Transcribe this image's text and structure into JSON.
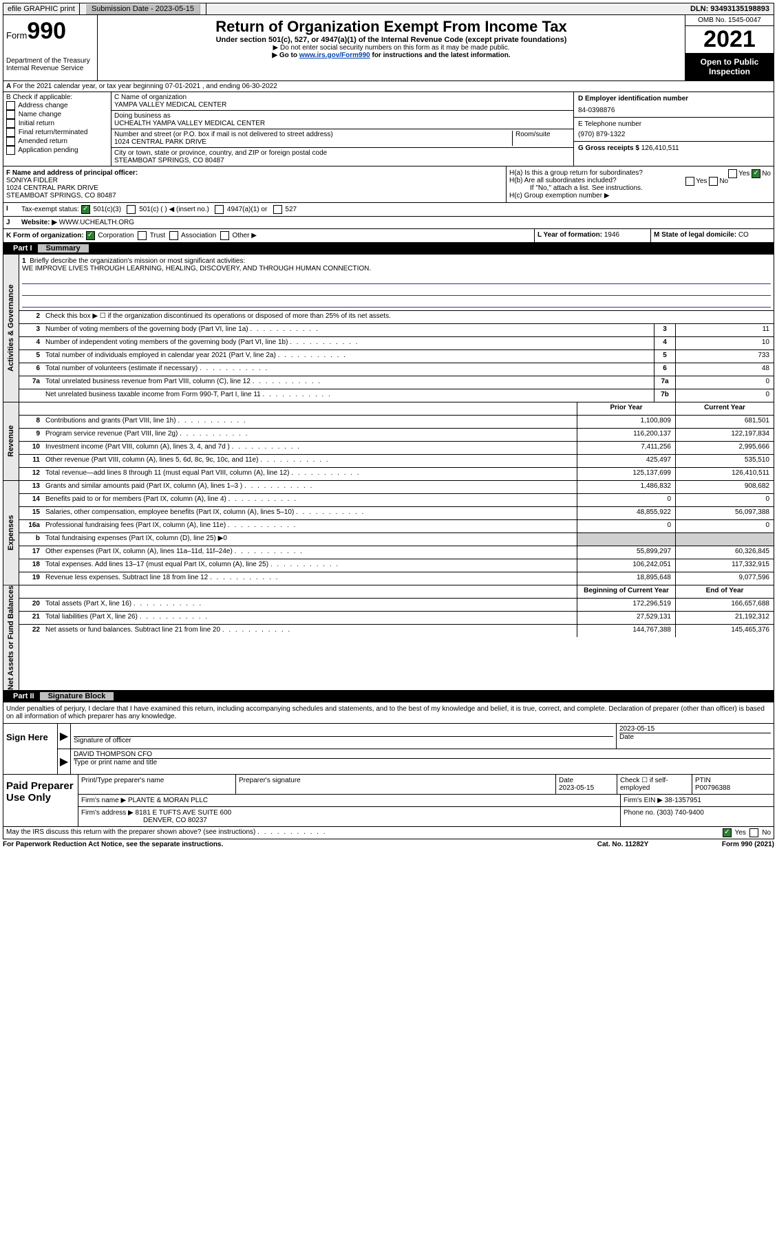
{
  "topbar": {
    "efile": "efile GRAPHIC print",
    "subdate_label": "Submission Date - ",
    "subdate": "2023-05-15",
    "dln_label": "DLN: ",
    "dln": "93493135198893"
  },
  "header": {
    "form_label": "Form",
    "form_num": "990",
    "dept": "Department of the Treasury\nInternal Revenue Service",
    "title": "Return of Organization Exempt From Income Tax",
    "sub": "Under section 501(c), 527, or 4947(a)(1) of the Internal Revenue Code (except private foundations)",
    "note1": "▶ Do not enter social security numbers on this form as it may be made public.",
    "note2_a": "▶ Go to ",
    "note2_link": "www.irs.gov/Form990",
    "note2_b": " for instructions and the latest information.",
    "omb": "OMB No. 1545-0047",
    "year": "2021",
    "open": "Open to Public Inspection"
  },
  "row_a": "For the 2021 calendar year, or tax year beginning 07-01-2021    , and ending 06-30-2022",
  "box_b": {
    "title": "B Check if applicable:",
    "items": [
      "Address change",
      "Name change",
      "Initial return",
      "Final return/terminated",
      "Amended return",
      "Application pending"
    ]
  },
  "box_c": {
    "name_label": "C Name of organization",
    "name": "YAMPA VALLEY MEDICAL CENTER",
    "dba_label": "Doing business as",
    "dba": "UCHEALTH YAMPA VALLEY MEDICAL CENTER",
    "street_label": "Number and street (or P.O. box if mail is not delivered to street address)",
    "room_label": "Room/suite",
    "street": "1024 CENTRAL PARK DRIVE",
    "city_label": "City or town, state or province, country, and ZIP or foreign postal code",
    "city": "STEAMBOAT SPRINGS, CO  80487"
  },
  "box_d": {
    "label": "D Employer identification number",
    "ein": "84-0398876"
  },
  "box_e": {
    "label": "E Telephone number",
    "phone": "(970) 879-1322"
  },
  "box_g": {
    "label": "G Gross receipts $ ",
    "val": "126,410,511"
  },
  "box_f": {
    "label": "F Name and address of principal officer:",
    "name": "SONIYA FIDLER",
    "street": "1024 CENTRAL PARK DRIVE",
    "city": "STEAMBOAT SPRINGS, CO  80487"
  },
  "box_h": {
    "ha": "H(a)  Is this a group return for subordinates?",
    "hb": "H(b)  Are all subordinates included?",
    "hb_note": "If \"No,\" attach a list. See instructions.",
    "hc": "H(c)  Group exemption number ▶"
  },
  "row_i": {
    "label": "Tax-exempt status:",
    "opts": [
      "501(c)(3)",
      "501(c) (  ) ◀ (insert no.)",
      "4947(a)(1) or",
      "527"
    ]
  },
  "row_j": {
    "label": "Website: ▶ ",
    "val": "WWW.UCHEALTH.ORG"
  },
  "row_k": {
    "label": "K Form of organization:",
    "opts": [
      "Corporation",
      "Trust",
      "Association",
      "Other ▶"
    ]
  },
  "row_l": {
    "label": "L Year of formation: ",
    "val": "1946"
  },
  "row_m": {
    "label": "M State of legal domicile: ",
    "val": "CO"
  },
  "part1": {
    "num": "Part I",
    "title": "Summary"
  },
  "summary": {
    "q1": "Briefly describe the organization's mission or most significant activities:",
    "mission": "WE IMPROVE LIVES THROUGH LEARNING, HEALING, DISCOVERY, AND THROUGH HUMAN CONNECTION.",
    "q2": "Check this box ▶ ☐  if the organization discontinued its operations or disposed of more than 25% of its net assets."
  },
  "gov_rows": [
    {
      "n": "3",
      "d": "Number of voting members of the governing body (Part VI, line 1a)",
      "b": "3",
      "v": "11"
    },
    {
      "n": "4",
      "d": "Number of independent voting members of the governing body (Part VI, line 1b)",
      "b": "4",
      "v": "10"
    },
    {
      "n": "5",
      "d": "Total number of individuals employed in calendar year 2021 (Part V, line 2a)",
      "b": "5",
      "v": "733"
    },
    {
      "n": "6",
      "d": "Total number of volunteers (estimate if necessary)",
      "b": "6",
      "v": "48"
    },
    {
      "n": "7a",
      "d": "Total unrelated business revenue from Part VIII, column (C), line 12",
      "b": "7a",
      "v": "0"
    },
    {
      "n": "",
      "d": "Net unrelated business taxable income from Form 990-T, Part I, line 11",
      "b": "7b",
      "v": "0"
    }
  ],
  "rev_hdr": {
    "py": "Prior Year",
    "cy": "Current Year"
  },
  "rev_rows": [
    {
      "n": "8",
      "d": "Contributions and grants (Part VIII, line 1h)",
      "py": "1,100,809",
      "cy": "681,501"
    },
    {
      "n": "9",
      "d": "Program service revenue (Part VIII, line 2g)",
      "py": "116,200,137",
      "cy": "122,197,834"
    },
    {
      "n": "10",
      "d": "Investment income (Part VIII, column (A), lines 3, 4, and 7d )",
      "py": "7,411,256",
      "cy": "2,995,666"
    },
    {
      "n": "11",
      "d": "Other revenue (Part VIII, column (A), lines 5, 6d, 8c, 9c, 10c, and 11e)",
      "py": "425,497",
      "cy": "535,510"
    },
    {
      "n": "12",
      "d": "Total revenue—add lines 8 through 11 (must equal Part VIII, column (A), line 12)",
      "py": "125,137,699",
      "cy": "126,410,511"
    }
  ],
  "exp_rows": [
    {
      "n": "13",
      "d": "Grants and similar amounts paid (Part IX, column (A), lines 1–3 )",
      "py": "1,486,832",
      "cy": "908,682"
    },
    {
      "n": "14",
      "d": "Benefits paid to or for members (Part IX, column (A), line 4)",
      "py": "0",
      "cy": "0"
    },
    {
      "n": "15",
      "d": "Salaries, other compensation, employee benefits (Part IX, column (A), lines 5–10)",
      "py": "48,855,922",
      "cy": "56,097,388"
    },
    {
      "n": "16a",
      "d": "Professional fundraising fees (Part IX, column (A), line 11e)",
      "py": "0",
      "cy": "0"
    },
    {
      "n": "b",
      "d": "Total fundraising expenses (Part IX, column (D), line 25)  ▶0",
      "py": "",
      "cy": "",
      "shade": true
    },
    {
      "n": "17",
      "d": "Other expenses (Part IX, column (A), lines 11a–11d, 11f–24e)",
      "py": "55,899,297",
      "cy": "60,326,845"
    },
    {
      "n": "18",
      "d": "Total expenses. Add lines 13–17 (must equal Part IX, column (A), line 25)",
      "py": "106,242,051",
      "cy": "117,332,915"
    },
    {
      "n": "19",
      "d": "Revenue less expenses. Subtract line 18 from line 12",
      "py": "18,895,648",
      "cy": "9,077,596"
    }
  ],
  "na_hdr": {
    "py": "Beginning of Current Year",
    "cy": "End of Year"
  },
  "na_rows": [
    {
      "n": "20",
      "d": "Total assets (Part X, line 16)",
      "py": "172,296,519",
      "cy": "166,657,688"
    },
    {
      "n": "21",
      "d": "Total liabilities (Part X, line 26)",
      "py": "27,529,131",
      "cy": "21,192,312"
    },
    {
      "n": "22",
      "d": "Net assets or fund balances. Subtract line 21 from line 20",
      "py": "144,767,388",
      "cy": "145,465,376"
    }
  ],
  "tabs": {
    "gov": "Activities & Governance",
    "rev": "Revenue",
    "exp": "Expenses",
    "na": "Net Assets or Fund Balances"
  },
  "part2": {
    "num": "Part II",
    "title": "Signature Block"
  },
  "sig": {
    "decl": "Under penalties of perjury, I declare that I have examined this return, including accompanying schedules and statements, and to the best of my knowledge and belief, it is true, correct, and complete. Declaration of preparer (other than officer) is based on all information of which preparer has any knowledge.",
    "sign_here": "Sign Here",
    "sig_officer": "Signature of officer",
    "date": "2023-05-15",
    "date_label": "Date",
    "name": "DAVID THOMPSON CFO",
    "name_label": "Type or print name and title"
  },
  "prep": {
    "label": "Paid Preparer Use Only",
    "h1": "Print/Type preparer's name",
    "h2": "Preparer's signature",
    "h3": "Date",
    "h3v": "2023-05-15",
    "h4": "Check ☐ if self-employed",
    "h5": "PTIN",
    "h5v": "P00796388",
    "firm_name_label": "Firm's name    ▶ ",
    "firm_name": "PLANTE & MORAN PLLC",
    "firm_ein_label": "Firm's EIN ▶ ",
    "firm_ein": "38-1357951",
    "firm_addr_label": "Firm's address ▶ ",
    "firm_addr1": "8181 E TUFTS AVE SUITE 600",
    "firm_addr2": "DENVER, CO  80237",
    "phone_label": "Phone no. ",
    "phone": "(303) 740-9400"
  },
  "may_discuss": "May the IRS discuss this return with the preparer shown above? (see instructions)",
  "footer": {
    "pra": "For Paperwork Reduction Act Notice, see the separate instructions.",
    "cat": "Cat. No. 11282Y",
    "form": "Form 990 (2021)"
  }
}
